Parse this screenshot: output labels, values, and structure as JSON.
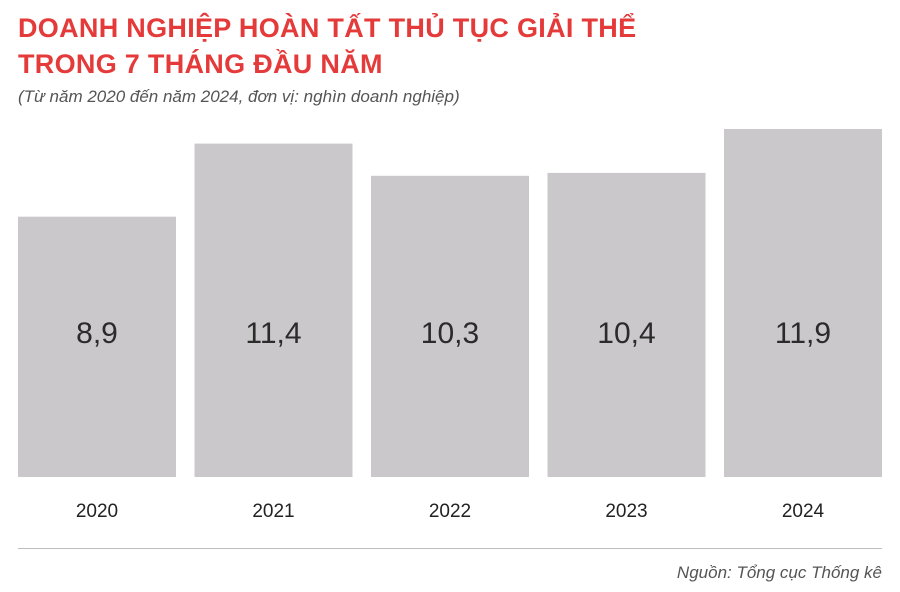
{
  "chart_data": {
    "type": "bar",
    "title_lines": [
      "DOANH NGHIỆP HOÀN TẤT THỦ TỤC GIẢI THỂ",
      "TRONG 7 THÁNG ĐẦU NĂM"
    ],
    "subtitle": "(Từ năm 2020 đến năm 2024, đơn vị: nghìn doanh nghiệp)",
    "categories": [
      "2020",
      "2021",
      "2022",
      "2023",
      "2024"
    ],
    "values": [
      8.9,
      11.4,
      10.3,
      10.4,
      11.9
    ],
    "value_labels": [
      "8,9",
      "11,4",
      "10,3",
      "10,4",
      "11,9"
    ],
    "xlabel": "",
    "ylabel": "",
    "ylim": [
      0,
      11.9
    ],
    "grid": false,
    "legend": "none",
    "source": "Nguồn: Tổng cục Thống kê",
    "colors": {
      "title": "#e53a3a",
      "bar": "#cbc8cb",
      "value_text": "#2b2b2b",
      "tick_text": "#222222",
      "subtitle_text": "#555555",
      "divider": "#bdbdbd"
    }
  }
}
